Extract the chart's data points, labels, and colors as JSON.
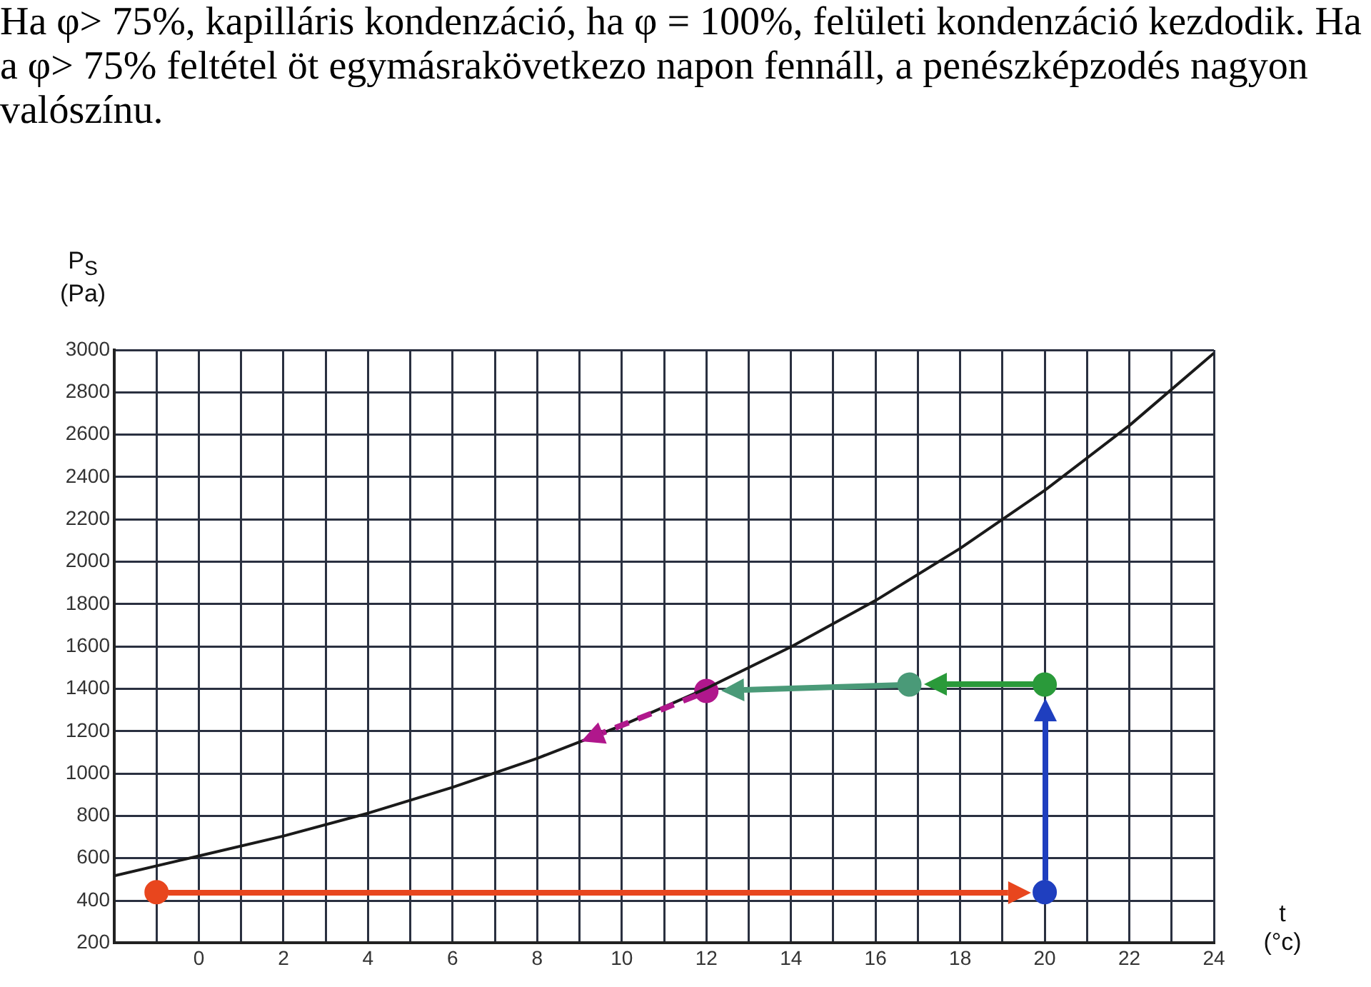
{
  "chart_data": {
    "type": "line",
    "title": "Ha φ> 75%, kapilláris kondenzáció, ha φ = 100%, felületi kondenzáció kezdodik. Ha a φ> 75% feltétel öt egymásrakövetkezo napon fennáll, a penészképzodés nagyon valószínu.",
    "xlabel": "t (°c)",
    "ylabel": "P$_{S}$ (Pa)",
    "xlim": [
      -2,
      24
    ],
    "xticks": [
      {
        "value": -1,
        "label": null
      },
      0,
      {
        "value": 1,
        "label": null
      },
      2,
      {
        "value": 3,
        "label": null
      },
      4,
      {
        "value": 5,
        "label": null
      },
      6,
      {
        "value": 7,
        "label": null
      },
      8,
      {
        "value": 9,
        "label": null
      },
      10,
      {
        "value": 11,
        "label": null
      },
      12,
      {
        "value": 13,
        "label": null
      },
      14,
      {
        "value": 15,
        "label": null
      },
      16,
      {
        "value": 17,
        "label": null
      },
      18,
      {
        "value": 19,
        "label": null
      },
      20,
      {
        "value": 21,
        "label": null
      },
      22,
      {
        "value": 23,
        "label": null
      },
      24
    ],
    "ylim": [
      200,
      3000
    ],
    "yticks": [
      200,
      400,
      600,
      800,
      1000,
      1200,
      1400,
      1600,
      1800,
      2000,
      2200,
      2400,
      2600,
      2800,
      3000
    ],
    "grid": true,
    "legend": false,
    "series": [
      {
        "color": "#1a1a1a",
        "x": [
          -2,
          0,
          2,
          4,
          6,
          8,
          10,
          12,
          14,
          16,
          18,
          20,
          22,
          24
        ],
        "values": [
          517,
          611,
          705,
          813,
          935,
          1072,
          1227,
          1402,
          1598,
          1817,
          2063,
          2337,
          2643,
          2985
        ]
      },
      {
        "type": "scatter",
        "marker": "circle",
        "x": [
          -1,
          20,
          20,
          16.8,
          12
        ],
        "values": [
          440,
          440,
          1420,
          1420,
          1390
        ],
        "colors": [
          "#e8461e",
          "#1f3fbf",
          "#2a9a3a",
          "#4a9a78",
          "#b0178c"
        ]
      }
    ]
  }
}
